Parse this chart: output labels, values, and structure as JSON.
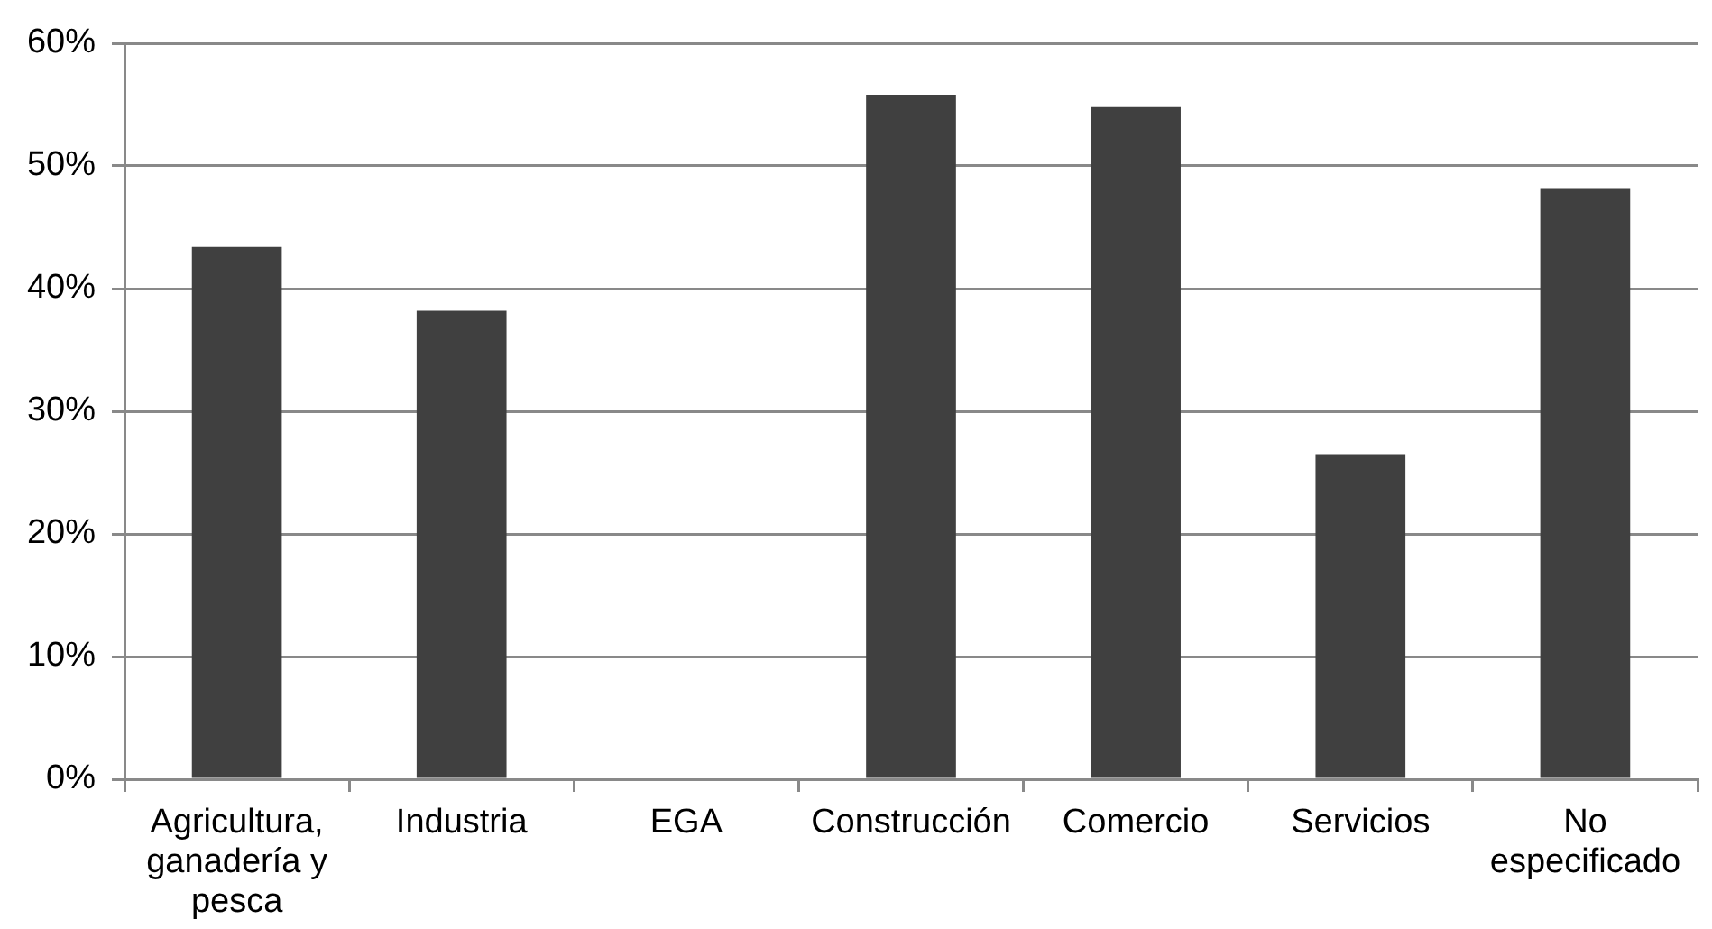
{
  "chart_data": {
    "type": "bar",
    "categories": [
      "Agricultura, ganadería y pesca",
      "Industria",
      "EGA",
      "Construcción",
      "Comercio",
      "Servicios",
      "No especificado"
    ],
    "values": [
      43.4,
      38.2,
      null,
      55.8,
      54.8,
      26.5,
      48.2
    ],
    "color": "#404040",
    "ylim": [
      0,
      60
    ],
    "yticks": [
      {
        "value": 0,
        "label": "0%"
      },
      {
        "value": 10,
        "label": "10%"
      },
      {
        "value": 20,
        "label": "20%"
      },
      {
        "value": 30,
        "label": "30%"
      },
      {
        "value": 40,
        "label": "40%"
      },
      {
        "value": 50,
        "label": "50%"
      },
      {
        "value": 60,
        "label": "60%"
      }
    ],
    "grid": "y"
  }
}
